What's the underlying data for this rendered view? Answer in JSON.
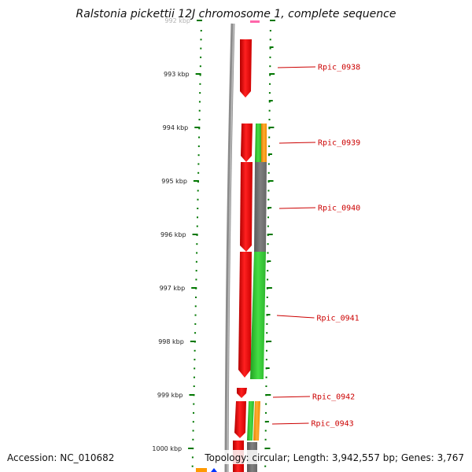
{
  "title": "Ralstonia pickettii 12J chromosome 1, complete sequence",
  "footer": {
    "accession": "Accession: NC_010682",
    "stats": "Topology: circular; Length: 3,942,557 bp; Genes: 3,767"
  },
  "ruler": {
    "unit": "kbp",
    "ticks": [
      {
        "kbp": 992,
        "label": "992 kbp"
      },
      {
        "kbp": 993,
        "label": "993 kbp"
      },
      {
        "kbp": 994,
        "label": "994 kbp"
      },
      {
        "kbp": 995,
        "label": "995 kbp"
      },
      {
        "kbp": 996,
        "label": "996 kbp"
      },
      {
        "kbp": 997,
        "label": "997 kbp"
      },
      {
        "kbp": 998,
        "label": "998 kbp"
      },
      {
        "kbp": 999,
        "label": "999 kbp"
      },
      {
        "kbp": 1000,
        "label": "1000 kbp"
      }
    ]
  },
  "genes": [
    {
      "name": "Rpic_0938",
      "start_kbp": 992.25,
      "end_kbp": 993.3
    },
    {
      "name": "Rpic_0939",
      "start_kbp": 993.95,
      "end_kbp": 994.65
    },
    {
      "name": "Rpic_0940",
      "start_kbp": 994.65,
      "end_kbp": 996.35
    },
    {
      "name": "Rpic_0941",
      "start_kbp": 996.35,
      "end_kbp": 998.7
    },
    {
      "name": "Rpic_0942",
      "start_kbp": 998.85,
      "end_kbp": 999.05
    },
    {
      "name": "Rpic_0943",
      "start_kbp": 999.1,
      "end_kbp": 999.85
    }
  ],
  "colors": {
    "cds_strand": "#ff0000",
    "cog_green": "#33cc33",
    "cog_grey": "#707070",
    "cog_orange": "#ff9900",
    "backbone": "#808080",
    "ruler_ticks": "#007700",
    "gene_label": "#cc0000"
  }
}
